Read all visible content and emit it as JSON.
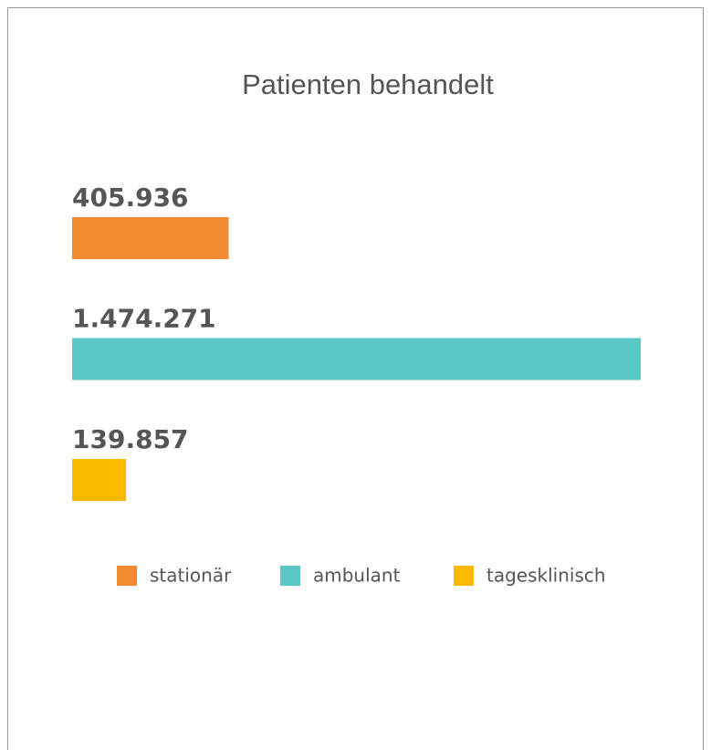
{
  "chart_data": {
    "type": "bar",
    "orientation": "horizontal",
    "title": "Patienten behandelt",
    "categories": [
      "stationär",
      "ambulant",
      "tagesklinisch"
    ],
    "values": [
      405936,
      1474271,
      139857
    ],
    "value_labels": [
      "405.936",
      "1.474.271",
      "139.857"
    ],
    "colors": [
      "#f28a32",
      "#5bc6c6",
      "#fbb900"
    ]
  }
}
